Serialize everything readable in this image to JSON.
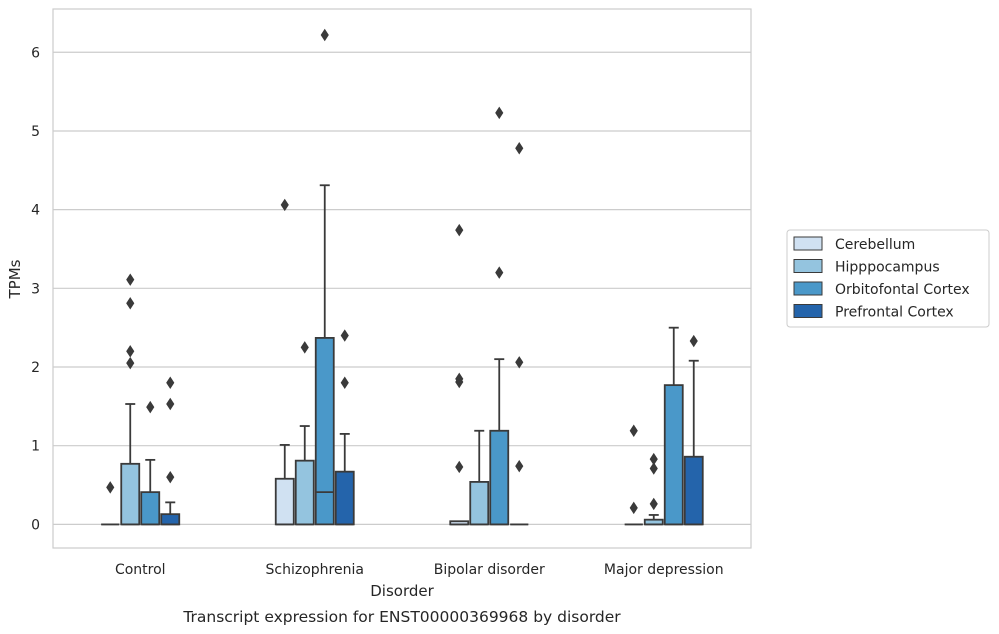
{
  "chart_data": {
    "type": "box",
    "title": "",
    "caption": "Transcript expression for ENST00000369968 by disorder",
    "xlabel": "Disorder",
    "ylabel": "TPMs",
    "ylim": [
      -0.3,
      6.55
    ],
    "yticks": [
      0,
      1,
      2,
      3,
      4,
      5,
      6
    ],
    "grid": "horizontal",
    "legend_position": "right",
    "categories": [
      "Control",
      "Schizophrenia",
      "Bipolar disorder",
      "Major depression"
    ],
    "series": [
      {
        "name": "Cerebellum",
        "color": "#d0e1f2",
        "boxes": [
          {
            "q1": 0,
            "median": 0,
            "q3": 0,
            "whisker_low": 0,
            "whisker_high": 0,
            "outliers": [
              0.47
            ]
          },
          {
            "q1": 0,
            "median": 0,
            "q3": 0.58,
            "whisker_low": 0,
            "whisker_high": 1.01,
            "outliers": [
              4.06
            ]
          },
          {
            "q1": 0,
            "median": 0,
            "q3": 0.04,
            "whisker_low": 0,
            "whisker_high": 0.04,
            "outliers": [
              0.73,
              1.81,
              1.85,
              3.74
            ]
          },
          {
            "q1": 0,
            "median": 0,
            "q3": 0,
            "whisker_low": 0,
            "whisker_high": 0,
            "outliers": [
              0.21,
              1.19
            ]
          }
        ]
      },
      {
        "name": "Hipppocampus",
        "color": "#94c4df",
        "boxes": [
          {
            "q1": 0,
            "median": 0,
            "q3": 0.77,
            "whisker_low": 0,
            "whisker_high": 1.53,
            "outliers": [
              2.05,
              2.2,
              2.81,
              3.11
            ]
          },
          {
            "q1": 0,
            "median": 0,
            "q3": 0.81,
            "whisker_low": 0,
            "whisker_high": 1.25,
            "outliers": [
              2.25
            ]
          },
          {
            "q1": 0,
            "median": 0,
            "q3": 0.54,
            "whisker_low": 0,
            "whisker_high": 1.19,
            "outliers": []
          },
          {
            "q1": 0,
            "median": 0,
            "q3": 0.06,
            "whisker_low": 0,
            "whisker_high": 0.12,
            "outliers": [
              0.26,
              0.71,
              0.83
            ]
          }
        ]
      },
      {
        "name": "Orbitofontal Cortex",
        "color": "#4a98c9",
        "boxes": [
          {
            "q1": 0,
            "median": 0,
            "q3": 0.41,
            "whisker_low": 0,
            "whisker_high": 0.82,
            "outliers": [
              1.49
            ]
          },
          {
            "q1": 0,
            "median": 0.41,
            "q3": 2.37,
            "whisker_low": 0,
            "whisker_high": 4.31,
            "outliers": [
              6.22
            ]
          },
          {
            "q1": 0,
            "median": 0,
            "q3": 1.19,
            "whisker_low": 0,
            "whisker_high": 2.1,
            "outliers": [
              3.2,
              5.23
            ]
          },
          {
            "q1": 0,
            "median": 0,
            "q3": 1.77,
            "whisker_low": 0,
            "whisker_high": 2.5,
            "outliers": []
          }
        ]
      },
      {
        "name": "Prefrontal Cortex",
        "color": "#2464ab",
        "boxes": [
          {
            "q1": 0,
            "median": 0,
            "q3": 0.13,
            "whisker_low": 0,
            "whisker_high": 0.28,
            "outliers": [
              0.6,
              1.53,
              1.8
            ]
          },
          {
            "q1": 0,
            "median": 0,
            "q3": 0.67,
            "whisker_low": 0,
            "whisker_high": 1.15,
            "outliers": [
              1.8,
              2.4
            ]
          },
          {
            "q1": 0,
            "median": 0,
            "q3": 0,
            "whisker_low": 0,
            "whisker_high": 0,
            "outliers": [
              0.74,
              2.06,
              4.78
            ]
          },
          {
            "q1": 0,
            "median": 0,
            "q3": 0.86,
            "whisker_low": 0,
            "whisker_high": 2.08,
            "outliers": [
              2.33
            ]
          }
        ]
      }
    ]
  }
}
